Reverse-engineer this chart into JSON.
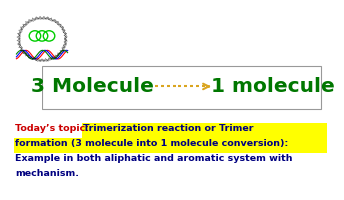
{
  "bg_color": "#ffffff",
  "molecule_text_left": "3 Molecule",
  "molecule_text_right": "1 molecule",
  "molecule_color": "#007700",
  "arrow_color": "#DAA520",
  "box_border_color": "#999999",
  "line1_prefix": "Today’s topic:  ",
  "line1_prefix_color": "#cc0000",
  "line1_highlight": "Trimerization reaction or Trimer",
  "line1_highlight_color": "#000080",
  "line1_highlight_bg": "#ffff00",
  "line2_highlight": "formation (3 molecule into 1 molecule conversion):",
  "line2_highlight_bg": "#ffff00",
  "line2_highlight_color": "#000080",
  "line3": "Example in both aliphatic and aromatic system with",
  "line3_color": "#000080",
  "line4": "mechanism.",
  "line4_color": "#000080",
  "body_fontsize": 6.8,
  "mol_fontsize": 14.5,
  "logo_present": true
}
